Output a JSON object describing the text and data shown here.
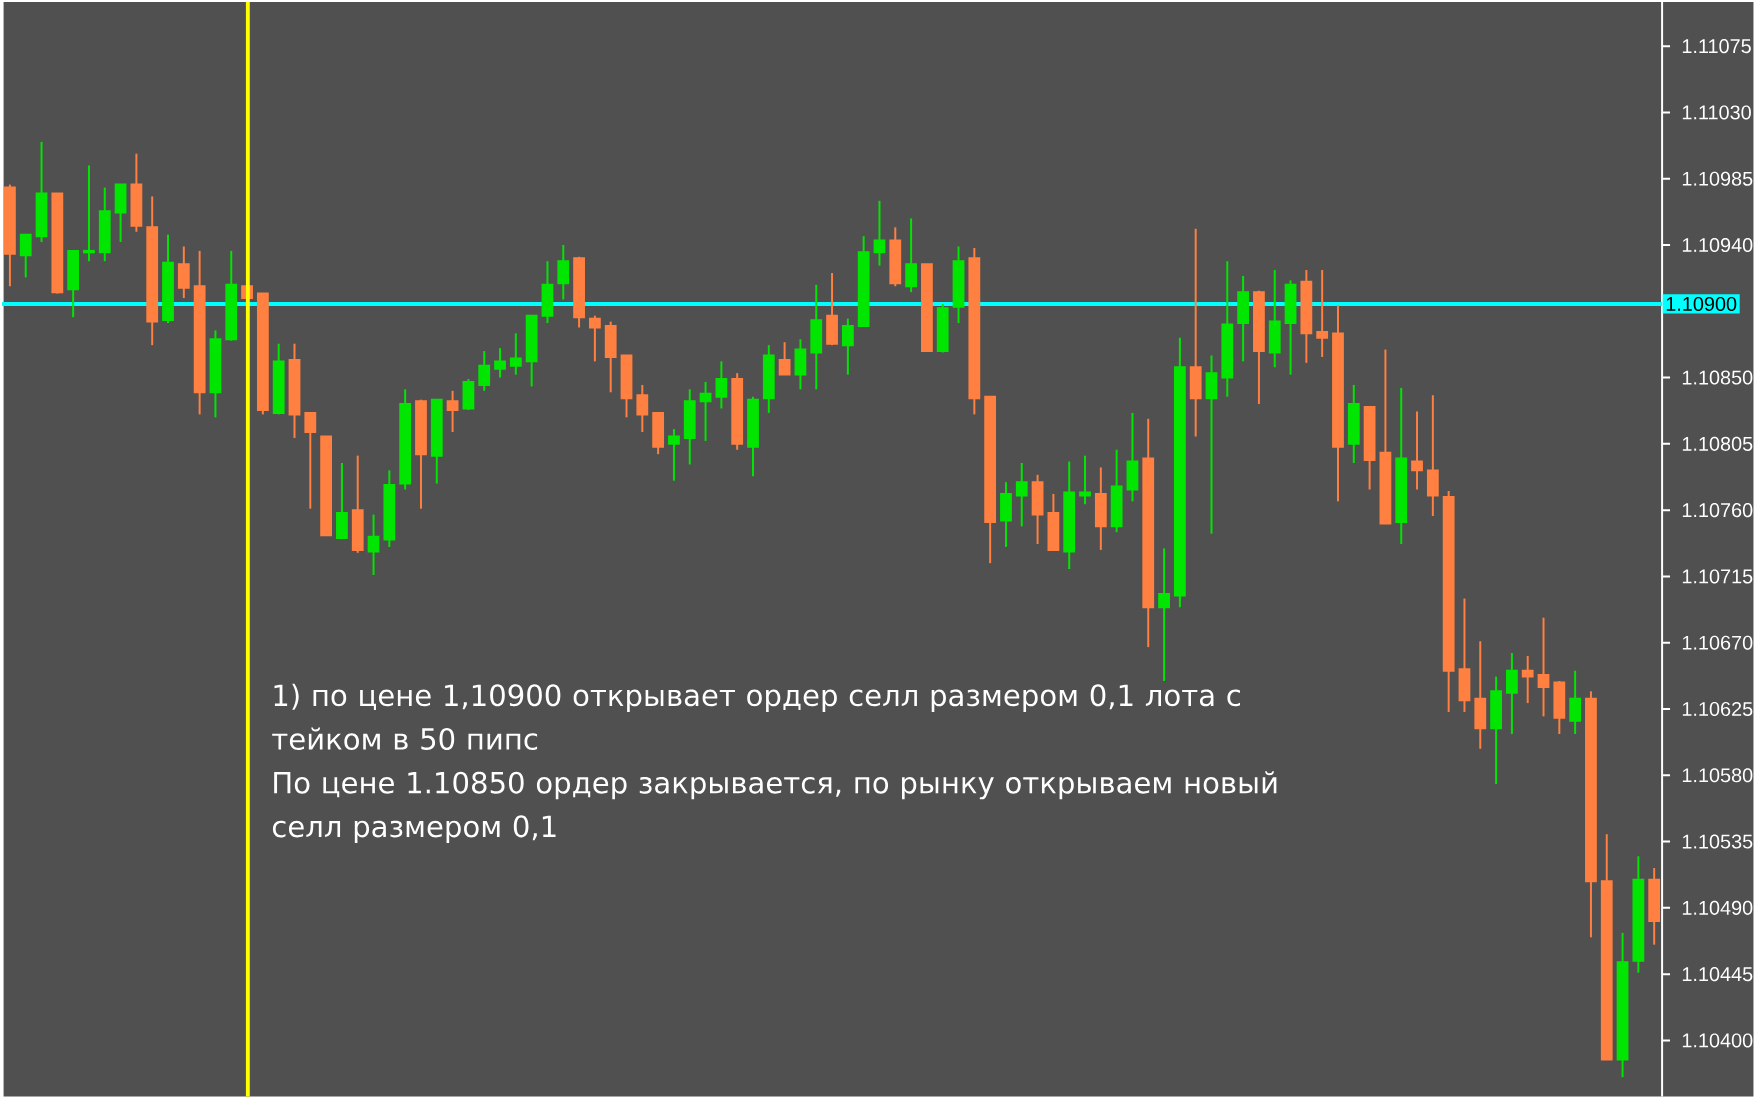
{
  "chart_data": {
    "type": "candlestick",
    "categories": [
      null,
      null,
      null,
      null,
      null,
      null,
      null,
      null,
      null,
      null,
      null,
      null,
      null,
      null,
      null,
      null,
      null,
      null,
      null,
      null,
      null,
      null,
      null,
      null,
      null,
      null,
      null,
      null,
      null,
      null,
      null,
      null,
      null,
      null,
      null,
      null,
      null,
      null,
      null,
      null,
      null,
      null,
      null,
      null,
      null,
      null,
      null,
      null,
      null,
      null,
      null,
      null,
      null,
      null,
      null,
      null,
      null,
      null,
      null,
      null,
      null,
      null,
      null,
      null,
      null,
      null,
      null,
      null,
      null,
      null,
      null,
      null,
      null,
      null,
      null,
      null,
      null,
      null,
      null,
      null,
      null,
      null,
      null,
      null,
      null,
      null,
      null,
      null,
      null,
      null,
      null,
      null,
      null,
      null,
      null,
      null,
      null,
      null,
      null,
      null,
      null,
      null,
      null,
      null,
      null
    ],
    "ohlc": [
      [
        1.10979,
        1.10981,
        1.10912,
        1.10934
      ],
      [
        1.10933,
        1.10947,
        1.10918,
        1.10947
      ],
      [
        1.10946,
        1.1101,
        1.10942,
        1.10975
      ],
      [
        1.10975,
        1.10975,
        1.10907,
        1.10908
      ],
      [
        1.1091,
        1.10936,
        1.10891,
        1.10936
      ],
      [
        1.10935,
        1.10994,
        1.10929,
        1.10936
      ],
      [
        1.10935,
        1.10979,
        1.10929,
        1.10963
      ],
      [
        1.10962,
        1.10981,
        1.10942,
        1.10981
      ],
      [
        1.10981,
        1.11002,
        1.10949,
        1.10953
      ],
      [
        1.10952,
        1.10973,
        1.10872,
        1.10888
      ],
      [
        1.10889,
        1.10947,
        1.10887,
        1.10928
      ],
      [
        1.10927,
        1.10939,
        1.10904,
        1.10911
      ],
      [
        1.10912,
        1.10936,
        1.10825,
        1.1084
      ],
      [
        1.1084,
        1.10882,
        1.10823,
        1.10876
      ],
      [
        1.10876,
        1.10936,
        1.10875,
        1.10913
      ],
      [
        1.10912,
        1.10912,
        1.10904,
        1.10904
      ],
      [
        1.10907,
        1.10907,
        1.10825,
        1.10828
      ],
      [
        1.10826,
        1.10873,
        1.10825,
        1.10861
      ],
      [
        1.10862,
        1.10873,
        1.10809,
        1.10825
      ],
      [
        1.10826,
        1.10826,
        1.10761,
        1.10813
      ],
      [
        1.1081,
        1.1081,
        1.10743,
        1.10743
      ],
      [
        1.10741,
        1.10792,
        1.10741,
        1.10758
      ],
      [
        1.1076,
        1.10797,
        1.10731,
        1.10733
      ],
      [
        1.10732,
        1.10757,
        1.10716,
        1.10742
      ],
      [
        1.1074,
        1.10787,
        1.10735,
        1.10777
      ],
      [
        1.10778,
        1.10842,
        1.10774,
        1.10832
      ],
      [
        1.10834,
        1.10835,
        1.10761,
        1.10798
      ],
      [
        1.10797,
        1.10835,
        1.10778,
        1.10835
      ],
      [
        1.10834,
        1.10841,
        1.10813,
        1.10828
      ],
      [
        1.10829,
        1.10849,
        1.10828,
        1.10847
      ],
      [
        1.10845,
        1.10868,
        1.10841,
        1.10858
      ],
      [
        1.10856,
        1.1087,
        1.1085,
        1.10861
      ],
      [
        1.10858,
        1.1088,
        1.10852,
        1.10863
      ],
      [
        1.10861,
        1.10892,
        1.10844,
        1.10892
      ],
      [
        1.10892,
        1.10929,
        1.10887,
        1.10913
      ],
      [
        1.10914,
        1.1094,
        1.10903,
        1.10929
      ],
      [
        1.10931,
        1.10932,
        1.10884,
        1.10891
      ],
      [
        1.1089,
        1.10892,
        1.10861,
        1.10884
      ],
      [
        1.10885,
        1.10888,
        1.1084,
        1.10864
      ],
      [
        1.10865,
        1.10865,
        1.10823,
        1.10836
      ],
      [
        1.10838,
        1.10845,
        1.10813,
        1.10825
      ],
      [
        1.10826,
        1.10826,
        1.10798,
        1.10803
      ],
      [
        1.10805,
        1.10815,
        1.1078,
        1.1081
      ],
      [
        1.10809,
        1.10842,
        1.10791,
        1.10834
      ],
      [
        1.10834,
        1.10847,
        1.10807,
        1.10839
      ],
      [
        1.10837,
        1.10861,
        1.10829,
        1.10849
      ],
      [
        1.10849,
        1.10853,
        1.10801,
        1.10805
      ],
      [
        1.10803,
        1.10837,
        1.10783,
        1.10835
      ],
      [
        1.10836,
        1.10872,
        1.10826,
        1.10865
      ],
      [
        1.10862,
        1.10874,
        1.10852,
        1.10852
      ],
      [
        1.10852,
        1.10876,
        1.10842,
        1.10869
      ],
      [
        1.10867,
        1.10913,
        1.10842,
        1.10889
      ],
      [
        1.10892,
        1.10921,
        1.10872,
        1.10873
      ],
      [
        1.10872,
        1.1089,
        1.10852,
        1.10885
      ],
      [
        1.10885,
        1.10946,
        1.10885,
        1.10935
      ],
      [
        1.10935,
        1.1097,
        1.10926,
        1.10943
      ],
      [
        1.10943,
        1.10952,
        1.10912,
        1.10914
      ],
      [
        1.10912,
        1.10958,
        1.10908,
        1.10927
      ],
      [
        1.10927,
        1.10927,
        1.10868,
        1.10868
      ],
      [
        1.10868,
        1.109,
        1.10867,
        1.10897
      ],
      [
        1.10898,
        1.10939,
        1.10887,
        1.10929
      ],
      [
        1.10931,
        1.10938,
        1.10825,
        1.10836
      ],
      [
        1.10837,
        1.10837,
        1.10724,
        1.10752
      ],
      [
        1.10753,
        1.10779,
        1.10735,
        1.10771
      ],
      [
        1.1077,
        1.10792,
        1.10749,
        1.10779
      ],
      [
        1.10779,
        1.10784,
        1.10737,
        1.10757
      ],
      [
        1.10758,
        1.10771,
        1.10733,
        1.10733
      ],
      [
        1.10732,
        1.10793,
        1.1072,
        1.10772
      ],
      [
        1.1077,
        1.10797,
        1.10764,
        1.10772
      ],
      [
        1.10771,
        1.10789,
        1.10733,
        1.10749
      ],
      [
        1.10749,
        1.10801,
        1.10745,
        1.10776
      ],
      [
        1.10774,
        1.10826,
        1.10766,
        1.10793
      ],
      [
        1.10795,
        1.10822,
        1.10667,
        1.10694
      ],
      [
        1.10694,
        1.10734,
        1.10644,
        1.10703
      ],
      [
        1.10702,
        1.10877,
        1.10694,
        1.10857
      ],
      [
        1.10857,
        1.10951,
        1.1081,
        1.10836
      ],
      [
        1.10836,
        1.10865,
        1.10744,
        1.10853
      ],
      [
        1.1085,
        1.10929,
        1.10837,
        1.10886
      ],
      [
        1.10887,
        1.10919,
        1.10861,
        1.10908
      ],
      [
        1.10908,
        1.10909,
        1.10832,
        1.10868
      ],
      [
        1.10867,
        1.10923,
        1.10857,
        1.10888
      ],
      [
        1.10887,
        1.10916,
        1.10852,
        1.10913
      ],
      [
        1.10915,
        1.10923,
        1.1086,
        1.1088
      ],
      [
        1.10881,
        1.10923,
        1.10864,
        1.10877
      ],
      [
        1.1088,
        1.10899,
        1.10766,
        1.10803
      ],
      [
        1.10805,
        1.10845,
        1.10792,
        1.10832
      ],
      [
        1.1083,
        1.1083,
        1.10774,
        1.10794
      ],
      [
        1.10799,
        1.10869,
        1.10751,
        1.10751
      ],
      [
        1.10752,
        1.10843,
        1.10737,
        1.10795
      ],
      [
        1.10793,
        1.10827,
        1.10774,
        1.10787
      ],
      [
        1.10787,
        1.10838,
        1.10756,
        1.1077
      ],
      [
        1.10769,
        1.10773,
        1.10623,
        1.10651
      ],
      [
        1.10652,
        1.107,
        1.10623,
        1.10631
      ],
      [
        1.10632,
        1.10671,
        1.10598,
        1.10612
      ],
      [
        1.10612,
        1.10647,
        1.10574,
        1.10637
      ],
      [
        1.10636,
        1.10663,
        1.10608,
        1.10651
      ],
      [
        1.10651,
        1.10661,
        1.10629,
        1.10647
      ],
      [
        1.10648,
        1.10687,
        1.1062,
        1.1064
      ],
      [
        1.10643,
        1.10644,
        1.10608,
        1.10619
      ],
      [
        1.10617,
        1.10651,
        1.10608,
        1.10632
      ],
      [
        1.10632,
        1.10637,
        1.1047,
        1.10508
      ],
      [
        1.10508,
        1.1054,
        1.10387,
        1.10387
      ],
      [
        1.10387,
        1.10473,
        1.10375,
        1.10453
      ],
      [
        1.10454,
        1.10525,
        1.10446,
        1.10509
      ],
      [
        1.10509,
        1.10517,
        1.10465,
        1.10481
      ]
    ],
    "ylim": [
      1.10362,
      1.11105
    ],
    "yticks": [
      {
        "value": 1.11075,
        "label": "1.11075"
      },
      {
        "value": 1.1103,
        "label": "1.11030"
      },
      {
        "value": 1.10985,
        "label": "1.10985"
      },
      {
        "value": 1.1094,
        "label": "1.10940"
      },
      {
        "value": 1.10895,
        "label": null
      },
      {
        "value": 1.1085,
        "label": "1.10850"
      },
      {
        "value": 1.10805,
        "label": "1.10805"
      },
      {
        "value": 1.1076,
        "label": "1.10760"
      },
      {
        "value": 1.10715,
        "label": "1.10715"
      },
      {
        "value": 1.1067,
        "label": "1.10670"
      },
      {
        "value": 1.10625,
        "label": "1.10625"
      },
      {
        "value": 1.1058,
        "label": "1.10580"
      },
      {
        "value": 1.10535,
        "label": "1.10535"
      },
      {
        "value": 1.1049,
        "label": "1.10490"
      },
      {
        "value": 1.10445,
        "label": "1.10445"
      },
      {
        "value": 1.104,
        "label": "1.10400"
      }
    ],
    "tick_labels": "y",
    "ref_lines": [
      {
        "axis": "y",
        "value": 1.109,
        "label": "1.10900",
        "color": "#00ffff"
      }
    ],
    "annotations": [
      "1) по цене 1,10900 открывает ордер селл размером 0,1 лота с тейком в 50 пипс",
      "По цене 1.10850 ордер закрывается, по рынку открываем новый селл размером 0,1"
    ]
  }
}
